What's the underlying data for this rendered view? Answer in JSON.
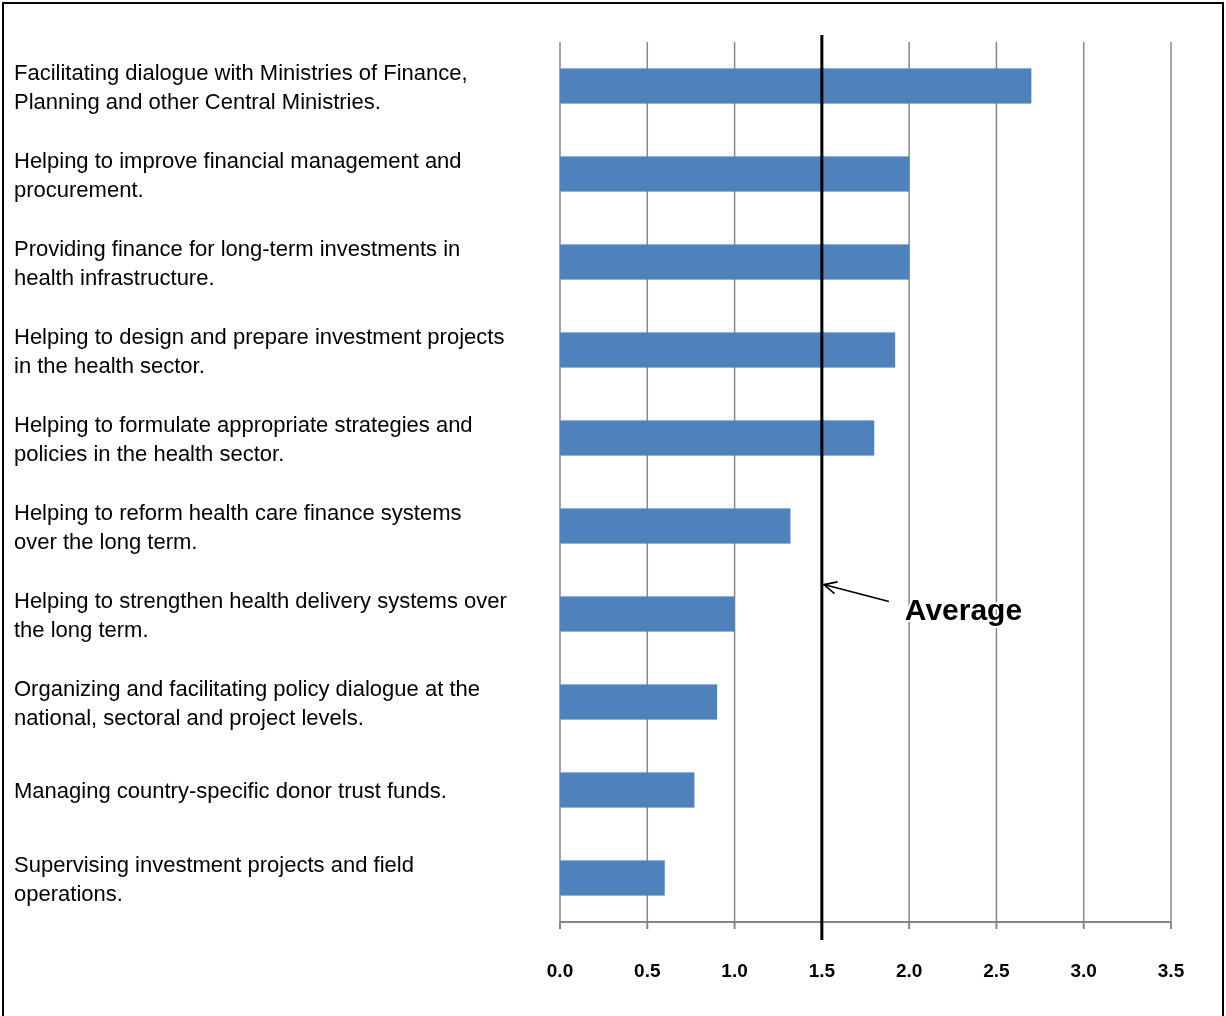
{
  "chart_data": {
    "type": "bar",
    "orientation": "horizontal",
    "categories": [
      "Facilitating dialogue with Ministries of Finance,\nPlanning and other Central Ministries.",
      "Helping to improve financial management and\nprocurement.",
      "Providing finance for long-term investments in\nhealth infrastructure.",
      "Helping to design and prepare investment projects\nin the health sector.",
      "Helping to formulate appropriate strategies and\npolicies in the health sector.",
      "Helping to reform health care finance systems\nover the long term.",
      "Helping to strengthen health delivery systems over\nthe long term.",
      "Organizing and facilitating policy dialogue at the\nnational, sectoral and project levels.",
      "Managing country-specific donor trust funds.",
      "Supervising investment projects and field\noperations."
    ],
    "values": [
      2.7,
      2.0,
      2.0,
      1.92,
      1.8,
      1.32,
      1.0,
      0.9,
      0.77,
      0.6
    ],
    "color": "#4f81bd",
    "xlim": [
      0,
      3.5
    ],
    "xticks": [
      {
        "value": 0,
        "label": "0.0"
      },
      0.5,
      {
        "value": 1,
        "label": "1.0"
      },
      1.5,
      {
        "value": 2,
        "label": "2.0"
      },
      2.5,
      {
        "value": 3,
        "label": "3.0"
      },
      3.5
    ],
    "grid": "x",
    "ref_lines": [
      {
        "axis": "x",
        "value": 1.5,
        "label": "Average",
        "color": "#000000"
      }
    ]
  }
}
